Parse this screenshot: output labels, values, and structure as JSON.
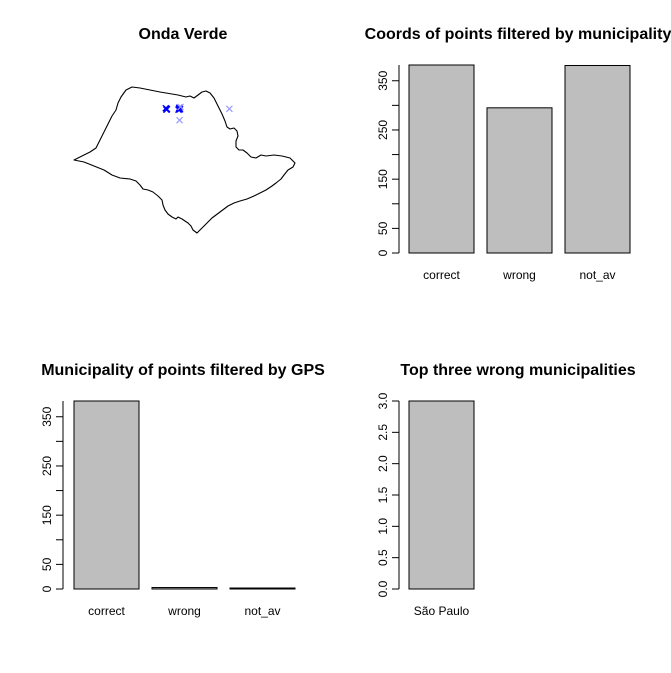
{
  "chart_data": [
    {
      "type": "scatter",
      "title": "Onda Verde",
      "points": [
        {
          "x": -49.35,
          "y": -20.62,
          "style": "dark"
        },
        {
          "x": -49.35,
          "y": -20.66,
          "style": "dark"
        },
        {
          "x": -49.33,
          "y": -20.63,
          "style": "dark"
        },
        {
          "x": -49.38,
          "y": -20.6,
          "style": "dark"
        },
        {
          "x": -48.85,
          "y": -20.62,
          "style": "dark"
        },
        {
          "x": -48.83,
          "y": -20.58,
          "style": "dark"
        },
        {
          "x": -48.8,
          "y": -20.64,
          "style": "dark"
        },
        {
          "x": -48.86,
          "y": -20.66,
          "style": "dark"
        },
        {
          "x": -48.82,
          "y": -20.61,
          "style": "dark"
        },
        {
          "x": -48.78,
          "y": -20.55,
          "style": "light"
        },
        {
          "x": -48.82,
          "y": -21.05,
          "style": "light"
        },
        {
          "x": -46.8,
          "y": -20.62,
          "style": "light"
        }
      ],
      "colors": {
        "dark": "#0000ff",
        "light": "#9999ff"
      }
    },
    {
      "type": "bar",
      "title": "Coords of points filtered by municipality",
      "categories": [
        "correct",
        "wrong",
        "not_av"
      ],
      "values": [
        382,
        295,
        381
      ],
      "ylim": [
        0,
        382
      ],
      "yticks": [
        0,
        50,
        150,
        250,
        350
      ],
      "yticks_minor": [
        100,
        200,
        300
      ],
      "colors": {
        "bar": "#bebebe"
      }
    },
    {
      "type": "bar",
      "title": "Municipality of points filtered by GPS",
      "categories": [
        "correct",
        "wrong",
        "not_av"
      ],
      "values": [
        382,
        3,
        2
      ],
      "ylim": [
        0,
        382
      ],
      "yticks": [
        0,
        50,
        150,
        250,
        350
      ],
      "yticks_minor": [
        100,
        200,
        300
      ],
      "colors": {
        "bar": "#bebebe"
      }
    },
    {
      "type": "bar",
      "title": "Top three wrong municipalities",
      "categories": [
        "São Paulo"
      ],
      "values": [
        3
      ],
      "ylim": [
        0,
        3
      ],
      "yticks": [
        0.0,
        0.5,
        1.0,
        1.5,
        2.0,
        2.5,
        3.0
      ],
      "yticks_minor": [],
      "colors": {
        "bar": "#bebebe"
      }
    }
  ]
}
